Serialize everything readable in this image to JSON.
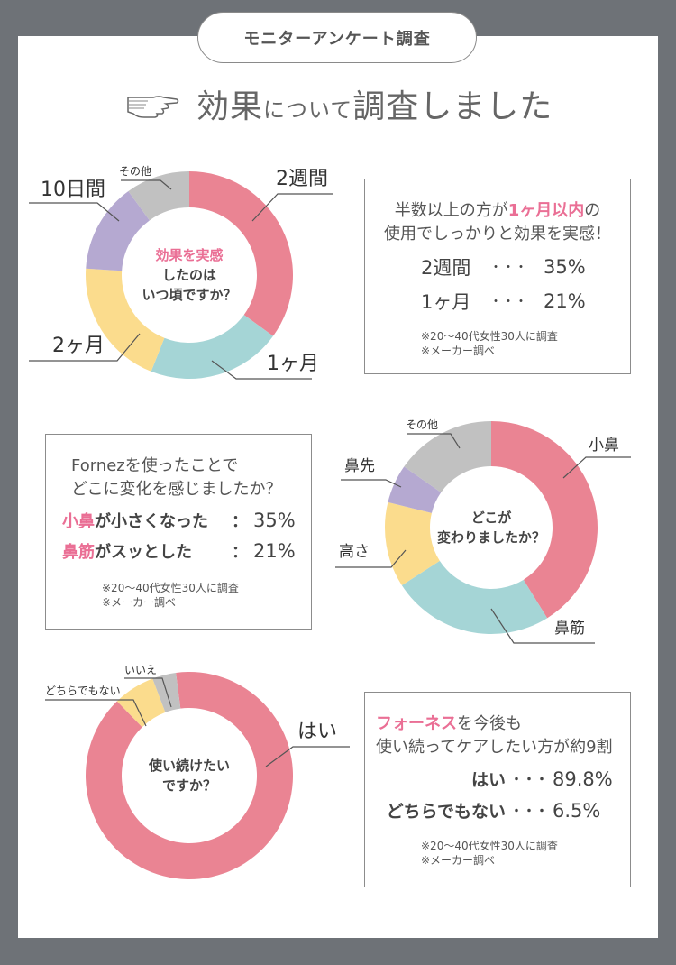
{
  "header": {
    "badge": "モニターアンケート調査"
  },
  "title": {
    "part1": "効果",
    "part2": "について",
    "part3": "調査しました"
  },
  "colors": {
    "pink": "#ea8493",
    "teal": "#a5d5d6",
    "yellow": "#fbdc8d",
    "purple": "#b5a9d1",
    "gray": "#c1c1c1",
    "accent": "#ea6f95"
  },
  "chart_data": [
    {
      "type": "pie",
      "center_text": [
        "効果を実感",
        "したのは",
        "いつ頃ですか？"
      ],
      "series": [
        {
          "name": "2週間",
          "value": 35
        },
        {
          "name": "1ヶ月",
          "value": 21
        },
        {
          "name": "2ヶ月",
          "value": 20
        },
        {
          "name": "10日間",
          "value": 14
        },
        {
          "name": "その他",
          "value": 10
        }
      ]
    },
    {
      "type": "pie",
      "center_text": [
        "どこが",
        "変わりましたか？"
      ],
      "series": [
        {
          "name": "小鼻",
          "value": 35
        },
        {
          "name": "鼻筋",
          "value": 21
        },
        {
          "name": "高さ",
          "value": 11
        },
        {
          "name": "鼻先",
          "value": 5
        },
        {
          "name": "その他",
          "value": 13
        }
      ]
    },
    {
      "type": "pie",
      "center_text": [
        "使い続けたい",
        "ですか？"
      ],
      "series": [
        {
          "name": "はい",
          "value": 89.8
        },
        {
          "name": "どちらでもない",
          "value": 6.5
        },
        {
          "name": "いいえ",
          "value": 3.7
        }
      ]
    }
  ],
  "box1": {
    "line1_pre": "半数以上の方が",
    "line1_hl": "1ヶ月以内",
    "line1_post": "の",
    "line2": "使用でしっかりと効果を実感！",
    "rows": [
      {
        "label": "2週間",
        "dots": "・・・",
        "value": "35%"
      },
      {
        "label": "1ヶ月",
        "dots": "・・・",
        "value": "21%"
      }
    ],
    "note1": "※20～40代女性30人に調査",
    "note2": "※メーカー調べ"
  },
  "box2": {
    "line1": "Fornezを使ったことで",
    "line2": "どこに変化を感じましたか？",
    "rows": [
      {
        "hl": "小鼻",
        "rest": "が小さくなった",
        "sep": "：",
        "value": "35%"
      },
      {
        "hl": "鼻筋",
        "rest": "がスッとした",
        "sep": "：",
        "value": "21%"
      }
    ],
    "note1": "※20～40代女性30人に調査",
    "note2": "※メーカー調べ"
  },
  "box3": {
    "line1_hl": "フォーネス",
    "line1_post": "を今後も",
    "line2": "使い続ってケアしたい方が約9割",
    "rows": [
      {
        "label": "はい",
        "dots": "・・・",
        "value": "89.8%"
      },
      {
        "label": "どちらでもない",
        "dots": "・・・",
        "value": "6.5%"
      }
    ],
    "note1": "※20～40代女性30人に調査",
    "note2": "※メーカー調べ"
  }
}
